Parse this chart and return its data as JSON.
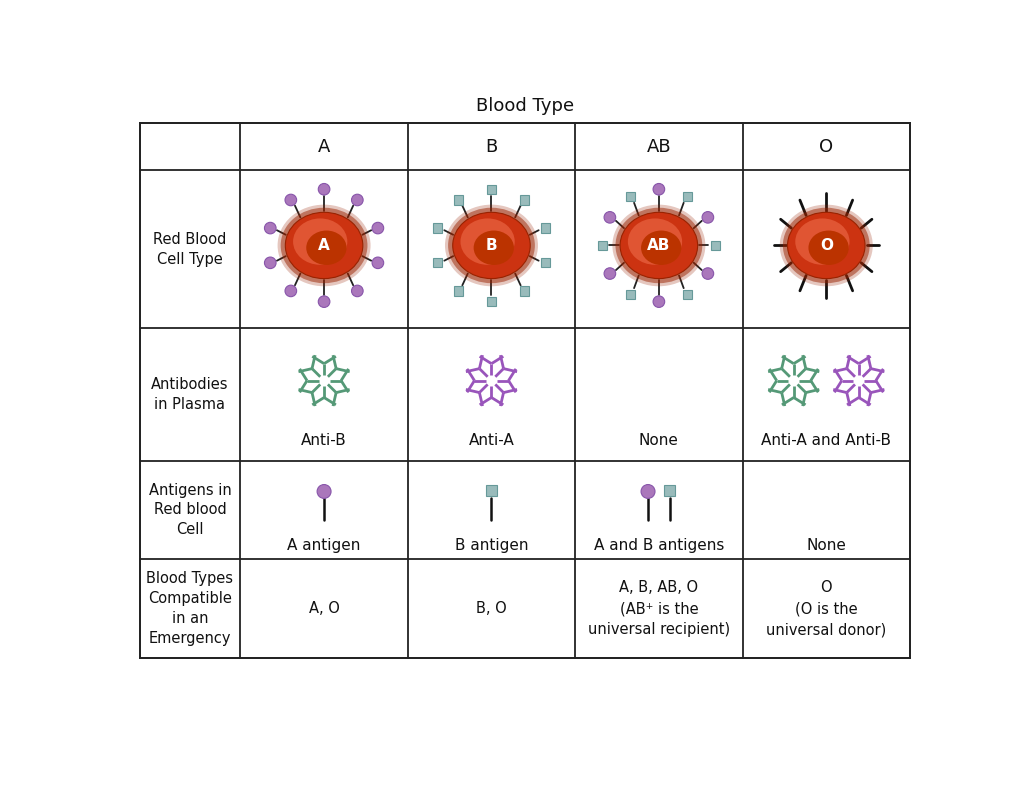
{
  "title": "Blood Type",
  "col_headers": [
    "A",
    "B",
    "AB",
    "O"
  ],
  "row_headers": [
    "Red Blood\nCell Type",
    "Antibodies\nin Plasma",
    "Antigens in\nRed blood\nCell",
    "Blood Types\nCompatible\nin an\nEmergency"
  ],
  "antibody_labels": [
    "Anti-B",
    "Anti-A",
    "None",
    "Anti-A and Anti-B"
  ],
  "antigen_labels": [
    "A antigen",
    "B antigen",
    "A and B antigens",
    "None"
  ],
  "compat_labels": [
    "A, O",
    "B, O",
    "A, B, AB, O\n(AB⁺ is the\nuniversal recipient)",
    "O\n(O is the\nuniversal donor)"
  ],
  "cell_label": [
    "A",
    "B",
    "AB",
    "O"
  ],
  "rbc_color": "#CC3311",
  "rbc_highlight_color": "#E05533",
  "rbc_shadow_color": "#992200",
  "rbc_inner_color": "#BB3300",
  "antigen_A_color": "#AA77BB",
  "antigen_A_edge": "#8855AA",
  "antigen_B_color": "#99BBBB",
  "antigen_B_edge": "#669999",
  "antibody_A_color": "#9955BB",
  "antibody_B_color": "#559977",
  "bg_color": "#FFFFFF",
  "grid_color": "#222222",
  "text_color": "#111111",
  "title_fontsize": 13,
  "header_fontsize": 13,
  "row_header_fontsize": 10.5,
  "cell_fontsize": 11
}
